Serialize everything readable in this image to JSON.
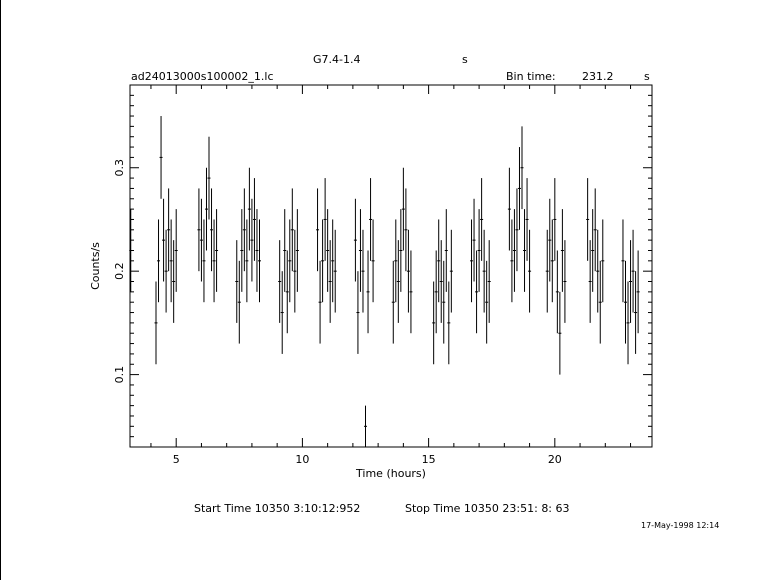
{
  "header": {
    "object": "G7.4-1.4",
    "units_right": "s",
    "file": "ad24013000s100002_1.lc",
    "bin_label": "Bin time:",
    "bin_value": "231.2",
    "bin_unit": "s"
  },
  "footer": {
    "start_time": "Start Time 10350  3:10:12:952",
    "stop_time": "Stop Time 10350 23:51: 8: 63",
    "date_stamp": "17-May-1998 12:14"
  },
  "chart_data": {
    "type": "scatter",
    "xlabel": "Time (hours)",
    "ylabel": "Counts/s",
    "xlim": [
      3.17,
      23.85
    ],
    "ylim": [
      0.03,
      0.38
    ],
    "xticks": [
      5,
      10,
      15,
      20
    ],
    "yticks": [
      0.1,
      0.2,
      0.3
    ],
    "xtick_labels": [
      "5",
      "10",
      "15",
      "20"
    ],
    "ytick_labels": [
      "0.1",
      "0.2",
      "0.3"
    ],
    "grid": false,
    "error_bars": true,
    "series": [
      {
        "x": [
          3.2,
          4.2,
          4.3,
          4.4,
          4.5,
          4.6,
          4.7,
          4.8,
          4.9,
          5.0,
          5.9,
          6.0,
          6.1,
          6.2,
          6.3,
          6.4,
          6.5,
          6.6,
          7.4,
          7.5,
          7.6,
          7.7,
          7.8,
          7.9,
          8.0,
          8.1,
          8.2,
          8.3,
          9.1,
          9.2,
          9.3,
          9.4,
          9.5,
          9.6,
          9.7,
          9.8,
          10.6,
          10.7,
          10.8,
          10.9,
          11.0,
          11.1,
          11.2,
          11.3,
          12.1,
          12.2,
          12.3,
          12.4,
          12.5,
          12.6,
          12.7,
          12.8,
          13.6,
          13.7,
          13.8,
          13.9,
          14.0,
          14.1,
          14.2,
          14.3,
          15.2,
          15.3,
          15.4,
          15.5,
          15.6,
          15.7,
          15.8,
          15.9,
          16.7,
          16.8,
          16.9,
          17.0,
          17.1,
          17.2,
          17.3,
          17.4,
          18.2,
          18.3,
          18.4,
          18.5,
          18.6,
          18.7,
          18.8,
          18.9,
          19.0,
          19.7,
          19.8,
          19.9,
          20.0,
          20.1,
          20.2,
          20.3,
          20.4,
          21.3,
          21.4,
          21.5,
          21.6,
          21.7,
          21.8,
          21.9,
          22.7,
          22.8,
          22.9,
          23.0,
          23.1,
          23.2,
          23.3
        ],
        "y": [
          0.22,
          0.15,
          0.21,
          0.31,
          0.23,
          0.2,
          0.24,
          0.21,
          0.19,
          0.22,
          0.24,
          0.23,
          0.21,
          0.26,
          0.29,
          0.24,
          0.21,
          0.22,
          0.19,
          0.17,
          0.22,
          0.24,
          0.21,
          0.26,
          0.23,
          0.25,
          0.22,
          0.21,
          0.19,
          0.16,
          0.22,
          0.18,
          0.21,
          0.24,
          0.2,
          0.22,
          0.24,
          0.17,
          0.21,
          0.25,
          0.22,
          0.19,
          0.21,
          0.2,
          0.23,
          0.16,
          0.22,
          0.2,
          0.05,
          0.18,
          0.25,
          0.21,
          0.17,
          0.21,
          0.19,
          0.22,
          0.26,
          0.24,
          0.2,
          0.18,
          0.15,
          0.18,
          0.21,
          0.19,
          0.17,
          0.22,
          0.15,
          0.2,
          0.21,
          0.23,
          0.18,
          0.22,
          0.25,
          0.2,
          0.17,
          0.19,
          0.26,
          0.21,
          0.22,
          0.24,
          0.28,
          0.3,
          0.22,
          0.25,
          0.2,
          0.2,
          0.23,
          0.21,
          0.25,
          0.18,
          0.14,
          0.22,
          0.19,
          0.25,
          0.19,
          0.22,
          0.24,
          0.2,
          0.17,
          0.21,
          0.21,
          0.17,
          0.15,
          0.19,
          0.2,
          0.16,
          0.18
        ],
        "yerr": [
          0.04,
          0.04,
          0.04,
          0.04,
          0.04,
          0.04,
          0.04,
          0.04,
          0.04,
          0.04,
          0.04,
          0.04,
          0.04,
          0.04,
          0.04,
          0.04,
          0.04,
          0.04,
          0.04,
          0.04,
          0.04,
          0.04,
          0.04,
          0.04,
          0.04,
          0.04,
          0.04,
          0.04,
          0.04,
          0.04,
          0.04,
          0.04,
          0.04,
          0.04,
          0.04,
          0.04,
          0.04,
          0.04,
          0.04,
          0.04,
          0.04,
          0.04,
          0.04,
          0.04,
          0.04,
          0.04,
          0.04,
          0.04,
          0.02,
          0.04,
          0.04,
          0.04,
          0.04,
          0.04,
          0.04,
          0.04,
          0.04,
          0.04,
          0.04,
          0.04,
          0.04,
          0.04,
          0.04,
          0.04,
          0.04,
          0.04,
          0.04,
          0.04,
          0.04,
          0.04,
          0.04,
          0.04,
          0.04,
          0.04,
          0.04,
          0.04,
          0.04,
          0.04,
          0.04,
          0.04,
          0.04,
          0.04,
          0.04,
          0.04,
          0.04,
          0.04,
          0.04,
          0.04,
          0.04,
          0.04,
          0.04,
          0.04,
          0.04,
          0.04,
          0.04,
          0.04,
          0.04,
          0.04,
          0.04,
          0.04,
          0.04,
          0.04,
          0.04,
          0.04,
          0.04,
          0.04,
          0.04
        ]
      }
    ]
  }
}
